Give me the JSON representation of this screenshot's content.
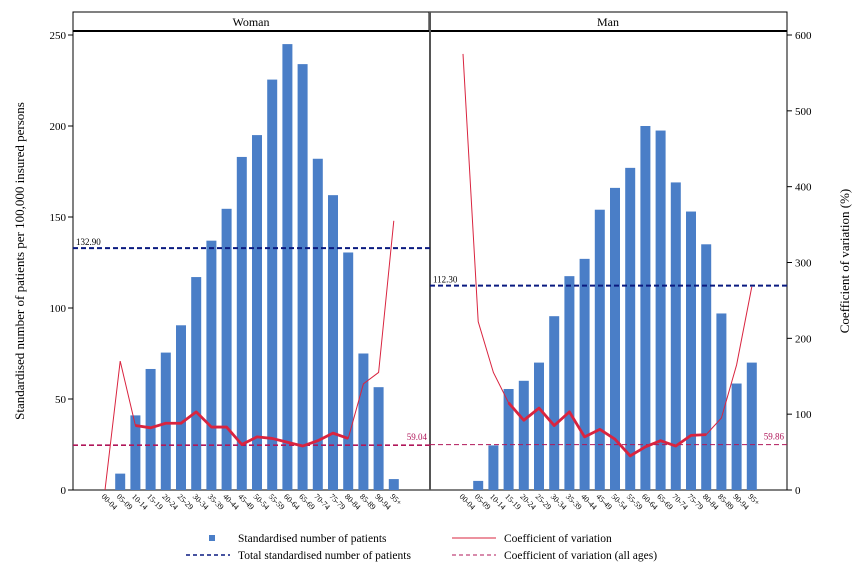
{
  "chart_data": {
    "type": "bar",
    "ylabel_left": "Standardised number of patients per 100,000 insured persons",
    "ylabel_right": "Coefficient of variation (%)",
    "ylim_left": [
      0,
      250
    ],
    "ylim_right": [
      0,
      600
    ],
    "yticks_left": [
      "0",
      "50",
      "100",
      "150",
      "200",
      "250"
    ],
    "yticks_right": [
      "0",
      "100",
      "200",
      "300",
      "400",
      "500",
      "600"
    ],
    "categories": [
      "00-04",
      "05-09",
      "10-14",
      "15-19",
      "20-24",
      "25-29",
      "30-34",
      "35-39",
      "40-44",
      "45-49",
      "50-54",
      "55-59",
      "60-64",
      "65-69",
      "70-74",
      "75-79",
      "80-84",
      "85-89",
      "90-94",
      "95+"
    ],
    "colors": {
      "bars": "#4a7ec7",
      "cv_line": "#d9243f",
      "total_line": "#0a1a80",
      "cv_all_line": "#b0175a"
    },
    "panels": [
      {
        "title": "Woman",
        "bars": [
          0,
          9,
          41,
          66.5,
          75.5,
          90.5,
          117,
          137,
          154.5,
          183,
          195,
          225.5,
          245,
          234,
          182,
          162,
          130.5,
          75,
          56.5,
          6
        ],
        "cv": [
          0,
          170,
          85,
          82,
          88,
          88,
          103,
          83,
          83,
          60,
          70,
          68,
          63,
          58,
          65,
          75,
          68,
          140,
          155,
          355
        ],
        "cv_thick_from": 2,
        "cv_thick_to": 16,
        "total": 132.9,
        "total_label": "132.90",
        "cv_all": 59.04,
        "cv_all_label": "59.04"
      },
      {
        "title": "Man",
        "bars": [
          0,
          5,
          24.5,
          55.5,
          60,
          70,
          95.5,
          117.5,
          127,
          154,
          166,
          177,
          200,
          197.5,
          169,
          153,
          135,
          97,
          58.5,
          70
        ],
        "cv": [
          575,
          222,
          155,
          115,
          92,
          108,
          85,
          103,
          70,
          80,
          67,
          45,
          57,
          65,
          58,
          72,
          73,
          95,
          165,
          268
        ],
        "cv_thick_from": 3,
        "cv_thick_to": 16,
        "total": 112.3,
        "total_label": "112.30",
        "cv_all": 59.86,
        "cv_all_label": "59.86"
      }
    ],
    "legend": {
      "bars": "Standardised number of patients",
      "total": "Total standardised number of patients",
      "cv": "Coefficient of variation",
      "cv_all": "Coefficient of variation (all ages)"
    }
  }
}
